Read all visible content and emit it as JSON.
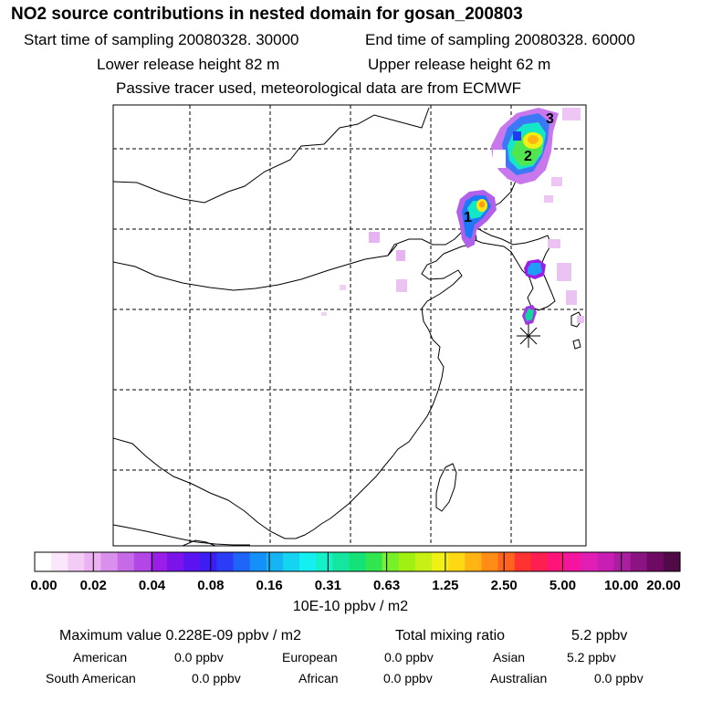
{
  "header": {
    "title": "NO2 source contributions in nested domain for gosan_200803",
    "start_label": "Start time of sampling 20080328. 30000",
    "end_label": "End time of sampling 20080328. 60000",
    "lower_label": "Lower release height   82 m",
    "upper_label": "Upper release height   62 m",
    "note": "Passive tracer used, meteorological data are from ECMWF"
  },
  "map": {
    "markers": [
      {
        "label": "1"
      },
      {
        "label": "2"
      },
      {
        "label": "3"
      }
    ],
    "receptor_symbol": "asterisk"
  },
  "colorbar": {
    "colors": [
      "#ffffff",
      "#fbe6fb",
      "#f3ccf5",
      "#eab2f1",
      "#d98fec",
      "#c66ae8",
      "#b347e6",
      "#9b1ee6",
      "#7a14e8",
      "#5a14f0",
      "#3c1ef5",
      "#2a3cf8",
      "#1e64f8",
      "#1490f8",
      "#14b4f5",
      "#14d4f2",
      "#14f0f0",
      "#14f0c8",
      "#14e6a0",
      "#14e178",
      "#32e650",
      "#78f028",
      "#a0f014",
      "#c8f014",
      "#f0f014",
      "#ffd814",
      "#ffb414",
      "#ff8c14",
      "#ff641e",
      "#ff3232",
      "#ff1e50",
      "#ff147a",
      "#f514a0",
      "#e11eb4",
      "#c81eb4",
      "#aa1ea0",
      "#8c1482",
      "#6e0a64",
      "#500a46"
    ],
    "ticks": [
      "0.00",
      "0.02",
      "0.04",
      "0.08",
      "0.16",
      "0.31",
      "0.63",
      "1.25",
      "2.50",
      "5.00",
      "10.00",
      "20.00"
    ],
    "units": "10E-10 ppbv / m2"
  },
  "summary": {
    "max_value": "Maximum value  0.228E-09 ppbv / m2",
    "total_label": "Total mixing ratio",
    "total_value": "5.2 ppbv",
    "regions": [
      {
        "name": "American",
        "value": "0.0 ppbv"
      },
      {
        "name": "European",
        "value": "0.0 ppbv"
      },
      {
        "name": "Asian",
        "value": "5.2 ppbv"
      },
      {
        "name": "South American",
        "value": "0.0 ppbv"
      },
      {
        "name": "African",
        "value": "0.0 ppbv"
      },
      {
        "name": "Australian",
        "value": "0.0 ppbv"
      }
    ]
  }
}
